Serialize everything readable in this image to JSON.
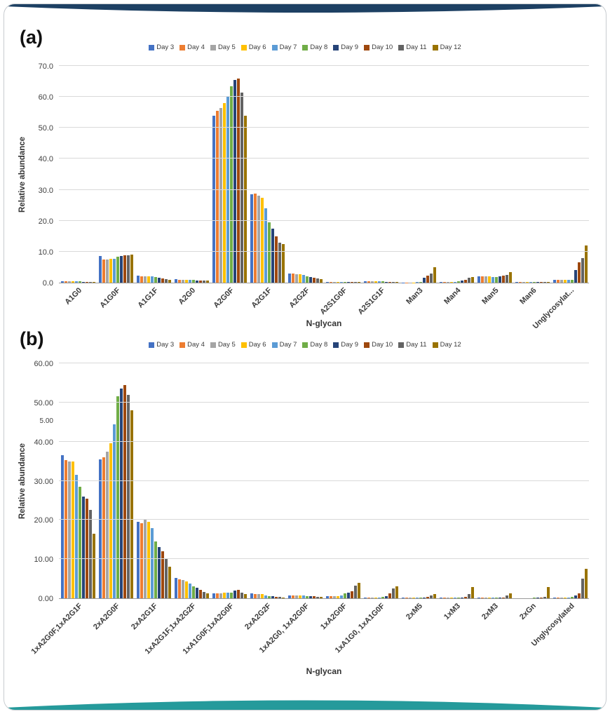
{
  "page": {
    "top_band_color": "#1d4063",
    "bottom_band_color": "#259a9b",
    "frame_border_color": "#c8ccd0",
    "gridline_color": "#d9d9d9"
  },
  "series_colors": [
    "#4472C4",
    "#ED7D31",
    "#A5A5A5",
    "#FFC000",
    "#5B9BD5",
    "#70AD47",
    "#264478",
    "#9E480E",
    "#636363",
    "#997300"
  ],
  "chart_data": [
    {
      "type": "bar",
      "panel_label": "(a)",
      "xlabel": "N-glycan",
      "ylabel": "Relative abundance",
      "ylim": [
        0,
        70
      ],
      "ytick_labels": [
        "0.0",
        "10.0",
        "20.0",
        "30.0",
        "40.0",
        "50.0",
        "60.0",
        "70.0"
      ],
      "legend_position": "top",
      "grid": true,
      "categories": [
        "A1G0",
        "A1G0F",
        "A1G1F",
        "A2G0",
        "A2G0F",
        "A2G1F",
        "A2G2F",
        "A2S1G0F",
        "A2S1G1F",
        "Man3",
        "Man4",
        "Man5",
        "Man6",
        "Unglycosylat..."
      ],
      "series": [
        {
          "name": "Day 3",
          "values": [
            0.5,
            8.5,
            2.3,
            1.1,
            54.0,
            28.5,
            3.0,
            0.3,
            0.5,
            0.1,
            0.3,
            2.0,
            0.2,
            1.0
          ]
        },
        {
          "name": "Day 4",
          "values": [
            0.5,
            7.4,
            2.1,
            0.9,
            55.5,
            28.7,
            2.9,
            0.3,
            0.5,
            0.1,
            0.3,
            2.0,
            0.2,
            1.0
          ]
        },
        {
          "name": "Day 5",
          "values": [
            0.5,
            7.4,
            2.1,
            0.9,
            56.5,
            28.0,
            2.8,
            0.3,
            0.5,
            0.1,
            0.3,
            2.0,
            0.2,
            1.0
          ]
        },
        {
          "name": "Day 6",
          "values": [
            0.5,
            7.6,
            2.1,
            0.9,
            58.0,
            27.5,
            2.8,
            0.3,
            0.5,
            0.1,
            0.3,
            2.0,
            0.2,
            0.9
          ]
        },
        {
          "name": "Day 7",
          "values": [
            0.4,
            7.8,
            2.0,
            0.8,
            60.0,
            24.0,
            2.5,
            0.3,
            0.4,
            0.2,
            0.3,
            1.9,
            0.2,
            0.9
          ]
        },
        {
          "name": "Day 8",
          "values": [
            0.4,
            8.3,
            1.8,
            0.8,
            63.5,
            19.5,
            2.0,
            0.3,
            0.4,
            0.3,
            0.4,
            1.8,
            0.2,
            1.0
          ]
        },
        {
          "name": "Day 9",
          "values": [
            0.3,
            8.6,
            1.5,
            0.7,
            65.5,
            17.5,
            1.8,
            0.3,
            0.3,
            1.5,
            0.6,
            2.0,
            0.2,
            4.0
          ]
        },
        {
          "name": "Day 10",
          "values": [
            0.3,
            8.8,
            1.3,
            0.7,
            66.0,
            15.0,
            1.5,
            0.3,
            0.3,
            2.2,
            1.0,
            2.3,
            0.2,
            6.5
          ]
        },
        {
          "name": "Day 11",
          "values": [
            0.3,
            8.9,
            1.1,
            0.7,
            61.5,
            13.0,
            1.3,
            0.2,
            0.2,
            3.0,
            1.5,
            2.6,
            0.3,
            8.0
          ]
        },
        {
          "name": "Day 12",
          "values": [
            0.3,
            9.0,
            1.0,
            0.7,
            54.0,
            12.5,
            1.2,
            0.2,
            0.2,
            5.0,
            1.8,
            3.5,
            0.3,
            12.0
          ]
        }
      ]
    },
    {
      "type": "bar",
      "panel_label": "(b)",
      "xlabel": "N-glycan",
      "ylabel": "Relative abundance",
      "ylim": [
        0,
        60
      ],
      "ytick_labels": [
        "0.00",
        "10.00",
        "20.00",
        "30.00",
        "40.00",
        "50.00",
        "60.00"
      ],
      "stray_axis_label": {
        "text": "5.00",
        "at_value": 45.5
      },
      "legend_position": "top",
      "grid": true,
      "categories": [
        "1xA2G0F,1xA2G1F",
        "2xA2G0F",
        "2xA2G1F",
        "1xA2G1F,1xA2G2F",
        "1xA1G0F,1xA2G0F",
        "2xA2G2F",
        "1xA2G0, 1xA2G0F",
        "1xA2G0F",
        "1xA1G0, 1xA1G0F",
        "2xM5",
        "1xM3",
        "2xM3",
        "2xGn",
        "Unglycosylated"
      ],
      "series": [
        {
          "name": "Day 3",
          "values": [
            36.5,
            35.5,
            19.5,
            5.2,
            1.3,
            1.3,
            0.8,
            0.5,
            0.1,
            0.1,
            0.1,
            0.1,
            0.0,
            0.1
          ]
        },
        {
          "name": "Day 4",
          "values": [
            35.2,
            36.0,
            19.2,
            4.8,
            1.2,
            1.1,
            0.7,
            0.5,
            0.1,
            0.1,
            0.1,
            0.1,
            0.0,
            0.1
          ]
        },
        {
          "name": "Day 5",
          "values": [
            35.0,
            37.5,
            20.0,
            4.6,
            1.3,
            1.0,
            0.7,
            0.5,
            0.1,
            0.1,
            0.1,
            0.1,
            0.0,
            0.1
          ]
        },
        {
          "name": "Day 6",
          "values": [
            35.0,
            39.5,
            19.5,
            4.3,
            1.5,
            1.0,
            0.7,
            0.6,
            0.1,
            0.1,
            0.1,
            0.1,
            0.0,
            0.1
          ]
        },
        {
          "name": "Day 7",
          "values": [
            31.5,
            44.5,
            18.0,
            3.8,
            1.5,
            0.8,
            0.7,
            0.8,
            0.2,
            0.1,
            0.1,
            0.1,
            0.0,
            0.2
          ]
        },
        {
          "name": "Day 8",
          "values": [
            28.5,
            51.5,
            14.5,
            3.0,
            1.5,
            0.6,
            0.5,
            1.2,
            0.3,
            0.1,
            0.1,
            0.1,
            0.1,
            0.3
          ]
        },
        {
          "name": "Day 9",
          "values": [
            26.0,
            53.5,
            13.0,
            2.6,
            2.0,
            0.5,
            0.5,
            1.5,
            0.6,
            0.2,
            0.2,
            0.1,
            0.1,
            0.8
          ]
        },
        {
          "name": "Day 10",
          "values": [
            25.5,
            54.5,
            12.0,
            2.1,
            2.2,
            0.4,
            0.5,
            1.8,
            1.3,
            0.3,
            0.3,
            0.2,
            0.2,
            1.2
          ]
        },
        {
          "name": "Day 11",
          "values": [
            22.5,
            52.0,
            10.0,
            1.6,
            1.4,
            0.3,
            0.3,
            3.2,
            2.5,
            0.7,
            1.0,
            0.7,
            0.4,
            5.0
          ]
        },
        {
          "name": "Day 12",
          "values": [
            16.5,
            48.0,
            8.0,
            1.3,
            1.1,
            0.2,
            0.3,
            4.0,
            3.0,
            1.0,
            2.8,
            1.2,
            2.8,
            7.5
          ]
        }
      ]
    }
  ]
}
